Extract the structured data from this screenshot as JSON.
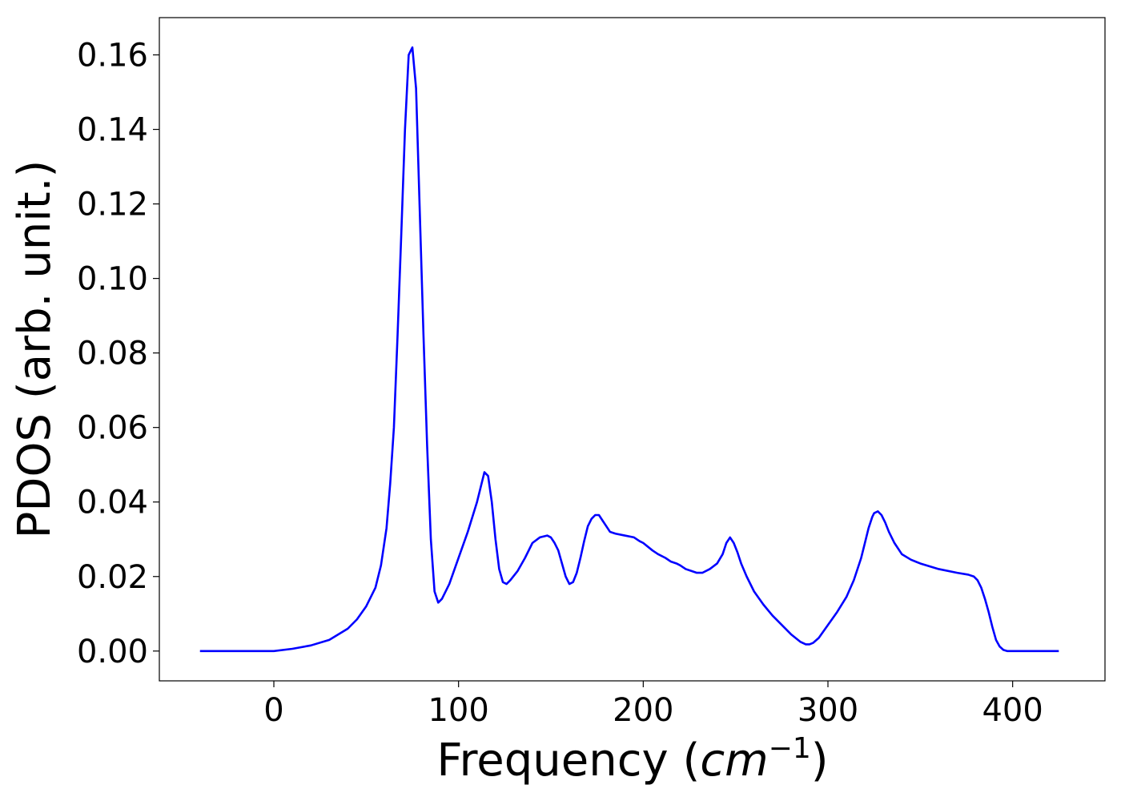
{
  "chart_data": {
    "type": "line",
    "title": "",
    "xlabel": "Frequency (",
    "xlabel_math_base": "cm",
    "xlabel_math_exp": "−1",
    "xlabel_close": ")",
    "ylabel": "PDOS (arb. unit.)",
    "xlim": [
      -62,
      450
    ],
    "ylim": [
      -0.008,
      0.17
    ],
    "grid": false,
    "legend": "none",
    "x_ticks": [
      0,
      100,
      200,
      300,
      400
    ],
    "x_tick_labels": [
      "0",
      "100",
      "200",
      "300",
      "400"
    ],
    "y_ticks": [
      0.0,
      0.02,
      0.04,
      0.06,
      0.08,
      0.1,
      0.12,
      0.14,
      0.16
    ],
    "y_tick_labels": [
      "0.00",
      "0.02",
      "0.04",
      "0.06",
      "0.08",
      "0.10",
      "0.12",
      "0.14",
      "0.16"
    ],
    "series": [
      {
        "color": "#0000ff",
        "x": [
          -40,
          -20,
          0,
          10,
          20,
          30,
          40,
          45,
          50,
          55,
          58,
          61,
          63,
          65,
          67,
          69,
          71,
          73,
          75,
          77,
          79,
          81,
          83,
          85,
          87,
          89,
          91,
          95,
          100,
          105,
          110,
          112,
          114,
          116,
          118,
          120,
          122,
          124,
          126,
          128,
          132,
          136,
          140,
          144,
          148,
          150,
          152,
          154,
          156,
          158,
          160,
          162,
          164,
          166,
          168,
          170,
          172,
          174,
          176,
          178,
          180,
          182,
          185,
          190,
          195,
          198,
          200,
          205,
          208,
          212,
          215,
          218,
          220,
          223,
          226,
          229,
          232,
          236,
          240,
          243,
          245,
          247,
          249,
          251,
          253,
          256,
          260,
          265,
          270,
          275,
          280,
          285,
          288,
          290,
          292,
          295,
          300,
          305,
          310,
          314,
          318,
          320,
          322,
          324,
          325,
          327,
          329,
          331,
          333,
          336,
          340,
          345,
          350,
          360,
          370,
          376,
          379,
          381,
          383,
          385,
          387,
          389,
          391,
          393,
          395,
          397,
          400,
          410,
          425
        ],
        "y": [
          0.0,
          0.0,
          0.0,
          0.0006,
          0.0015,
          0.003,
          0.006,
          0.0085,
          0.012,
          0.017,
          0.023,
          0.033,
          0.045,
          0.06,
          0.085,
          0.112,
          0.14,
          0.16,
          0.162,
          0.151,
          0.118,
          0.085,
          0.055,
          0.03,
          0.016,
          0.013,
          0.014,
          0.018,
          0.025,
          0.032,
          0.04,
          0.044,
          0.048,
          0.047,
          0.04,
          0.03,
          0.022,
          0.0185,
          0.018,
          0.019,
          0.0215,
          0.025,
          0.029,
          0.0305,
          0.031,
          0.0305,
          0.029,
          0.027,
          0.0235,
          0.02,
          0.018,
          0.0185,
          0.021,
          0.025,
          0.0295,
          0.0335,
          0.0355,
          0.0365,
          0.0365,
          0.035,
          0.0335,
          0.032,
          0.0315,
          0.031,
          0.0305,
          0.0295,
          0.029,
          0.027,
          0.026,
          0.025,
          0.024,
          0.0235,
          0.023,
          0.022,
          0.0215,
          0.021,
          0.021,
          0.022,
          0.0235,
          0.026,
          0.029,
          0.0305,
          0.029,
          0.0265,
          0.0235,
          0.02,
          0.016,
          0.0125,
          0.0095,
          0.007,
          0.0045,
          0.0025,
          0.0018,
          0.0018,
          0.0022,
          0.0035,
          0.007,
          0.0105,
          0.0145,
          0.019,
          0.025,
          0.029,
          0.033,
          0.036,
          0.037,
          0.0375,
          0.0365,
          0.0345,
          0.032,
          0.029,
          0.026,
          0.0245,
          0.0235,
          0.022,
          0.021,
          0.0205,
          0.02,
          0.019,
          0.017,
          0.014,
          0.0105,
          0.0065,
          0.003,
          0.0012,
          0.0003,
          0.0,
          0.0,
          0.0,
          0.0
        ]
      }
    ]
  }
}
